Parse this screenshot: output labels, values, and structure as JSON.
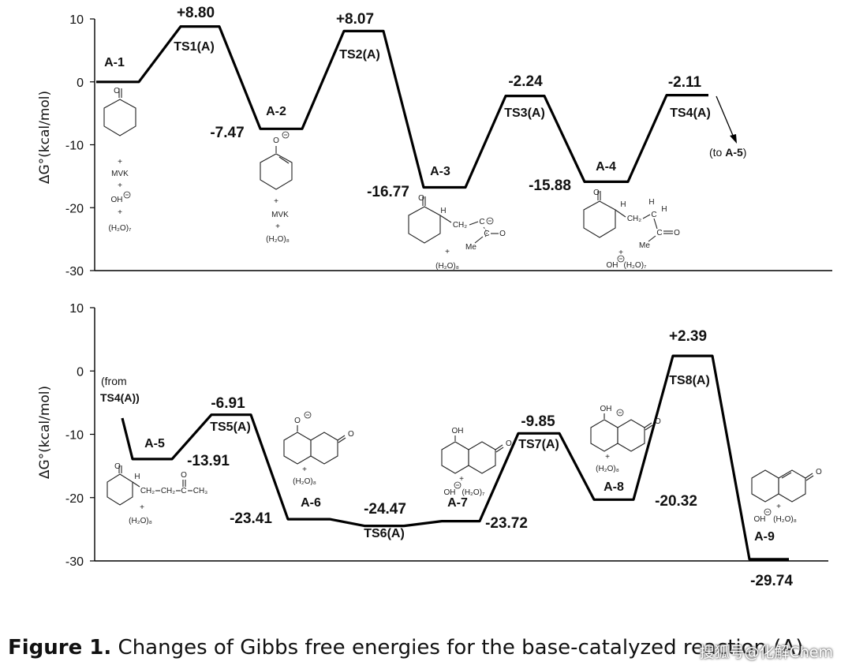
{
  "chart_data": [
    {
      "type": "line",
      "ylabel": "ΔG°(kcal/mol)",
      "ylim": [
        -30,
        10
      ],
      "yticks": [
        "10",
        "0",
        "-10",
        "-20",
        "-30"
      ],
      "grid": false,
      "points": [
        {
          "label": "A-1",
          "value": 0
        },
        {
          "label": "TS1(A)",
          "value": 8.8,
          "value_label": "+8.80"
        },
        {
          "label": "A-2",
          "value": -7.47,
          "value_label": "-7.47"
        },
        {
          "label": "TS2(A)",
          "value": 8.07,
          "value_label": "+8.07"
        },
        {
          "label": "A-3",
          "value": -16.77,
          "value_label": "-16.77"
        },
        {
          "label": "TS3(A)",
          "value": -2.24,
          "value_label": "-2.24"
        },
        {
          "label": "A-4",
          "value": -15.88,
          "value_label": "-15.88"
        },
        {
          "label": "TS4(A)",
          "value": -2.11,
          "value_label": "-2.11"
        }
      ],
      "annotations": [
        "(to ",
        "A-5",
        ")"
      ],
      "species": {
        "a1": [
          "+",
          "MVK",
          "+",
          "OH",
          "+",
          "(H₂O)₇"
        ],
        "a2": [
          "+",
          "MVK",
          "+",
          "(H₂O)₈"
        ],
        "a3": [
          "H",
          "CH₂",
          "C",
          "C",
          "O",
          "Me",
          "+",
          "(H₂O)₈"
        ],
        "a4": [
          "H",
          "CH₂",
          "C",
          "H",
          "H",
          "C",
          "O",
          "Me",
          "+",
          "OH",
          "(H₂O)₇"
        ]
      }
    },
    {
      "type": "line",
      "ylabel": "ΔG°(kcal/mol)",
      "ylim": [
        -30,
        10
      ],
      "yticks": [
        "10",
        "0",
        "-10",
        "-20",
        "-30"
      ],
      "grid": false,
      "points": [
        {
          "label": "A-5",
          "value": -13.91,
          "value_label": "-13.91"
        },
        {
          "label": "TS5(A)",
          "value": -6.91,
          "value_label": "-6.91"
        },
        {
          "label": "A-6",
          "value": -23.41,
          "value_label": "-23.41"
        },
        {
          "label": "TS6(A)",
          "value": -24.47,
          "value_label": "-24.47"
        },
        {
          "label": "A-7",
          "value": -23.72,
          "value_label": "-23.72"
        },
        {
          "label": "TS7(A)",
          "value": -9.85,
          "value_label": "-9.85"
        },
        {
          "label": "A-8",
          "value": -20.32,
          "value_label": "-20.32"
        },
        {
          "label": "TS8(A)",
          "value": 2.39,
          "value_label": "+2.39"
        },
        {
          "label": "A-9",
          "value": -29.74,
          "value_label": "-29.74"
        }
      ],
      "annotations": [
        "(from",
        "TS4(A))"
      ],
      "species": {
        "a5": [
          "H",
          "CH₂",
          "CH₂",
          "C",
          "CH₃",
          "+",
          "(H₂O)₈"
        ],
        "a6": [
          "O",
          "+",
          "(H₂O)₈"
        ],
        "a7": [
          "OH",
          "+",
          "OH",
          "(H₂O)₇"
        ],
        "a8": [
          "OH",
          "+",
          "(H₂O)₈"
        ],
        "a9": [
          "+",
          "OH",
          "(H₂O)₈"
        ]
      }
    }
  ],
  "caption": {
    "label": "Figure 1.",
    "text": " Changes of Gibbs free energies for the base-catalyzed reaction (A)."
  },
  "watermark": "搜狐号@化解Chem"
}
